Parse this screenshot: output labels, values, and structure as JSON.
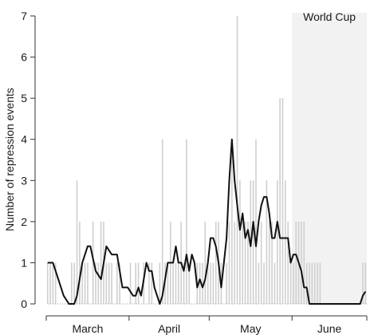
{
  "chart_data": {
    "type": "bar+line",
    "title": "",
    "ylabel": "Number of repression events",
    "xlabel": "",
    "ylim": [
      0,
      7
    ],
    "yticks": [
      0,
      1,
      2,
      3,
      4,
      5,
      6,
      7
    ],
    "x_unit": "days",
    "x_range": [
      0,
      120
    ],
    "months": [
      {
        "label": "March",
        "start": 0,
        "end": 31
      },
      {
        "label": "April",
        "start": 31,
        "end": 61
      },
      {
        "label": "May",
        "start": 61,
        "end": 92
      },
      {
        "label": "June",
        "start": 92,
        "end": 120
      }
    ],
    "shaded_band": {
      "label": "World Cup",
      "start": 92,
      "end": 120,
      "color": "#f2f2f2"
    },
    "series": [
      {
        "kind": "bars",
        "color": "#cfcfcf",
        "x": [
          0,
          1,
          2,
          3,
          4,
          5,
          6,
          7,
          8,
          9,
          10,
          11,
          12,
          13,
          14,
          15,
          16,
          17,
          18,
          19,
          20,
          21,
          22,
          23,
          24,
          25,
          26,
          27,
          28,
          29,
          30,
          31,
          32,
          33,
          34,
          35,
          36,
          37,
          38,
          39,
          40,
          41,
          42,
          43,
          44,
          45,
          46,
          47,
          48,
          49,
          50,
          51,
          52,
          53,
          54,
          55,
          56,
          57,
          58,
          59,
          60,
          61,
          62,
          63,
          64,
          65,
          66,
          67,
          68,
          69,
          70,
          71,
          72,
          73,
          74,
          75,
          76,
          77,
          78,
          79,
          80,
          81,
          82,
          83,
          84,
          85,
          86,
          87,
          88,
          89,
          90,
          91,
          92,
          93,
          94,
          95,
          96,
          97,
          98,
          99,
          100,
          101,
          102,
          103,
          104,
          105,
          106,
          107,
          108,
          109,
          110,
          111,
          112,
          113,
          114,
          115,
          116,
          117,
          118,
          119
        ],
        "values": [
          1,
          1,
          1,
          1,
          0,
          0,
          0,
          0,
          0,
          1,
          1,
          3,
          2,
          1,
          1,
          1,
          0,
          2,
          1,
          1,
          2,
          2,
          1,
          1,
          1,
          0,
          1,
          1,
          0,
          0,
          0,
          1,
          0,
          1,
          1,
          0,
          1,
          0,
          1,
          1,
          0,
          0,
          1,
          4,
          1,
          1,
          2,
          1,
          1,
          1,
          2,
          1,
          4,
          1,
          0,
          0,
          1,
          1,
          1,
          2,
          1,
          1,
          1,
          2,
          2,
          1,
          0,
          1,
          2,
          4,
          2,
          7,
          3,
          2,
          2,
          2,
          3,
          3,
          4,
          1,
          2,
          1,
          3,
          2,
          2,
          1,
          3,
          5,
          5,
          3,
          2,
          1,
          1,
          2,
          2,
          2,
          2,
          1,
          1,
          1,
          1,
          1,
          1,
          0,
          0,
          0,
          0,
          0,
          0,
          0,
          0,
          0,
          0,
          0,
          0,
          0,
          0,
          0,
          1,
          1
        ]
      },
      {
        "kind": "line",
        "color": "#111111",
        "x": [
          0,
          2,
          4,
          6,
          8,
          10,
          11,
          13,
          15,
          16,
          18,
          20,
          22,
          24,
          26,
          28,
          30,
          32,
          33,
          34,
          35,
          36,
          37,
          38,
          39,
          40,
          41,
          42,
          43,
          45,
          46,
          47,
          48,
          49,
          50,
          51,
          52,
          53,
          54,
          55,
          56,
          57,
          58,
          59,
          60,
          61,
          62,
          63,
          64,
          65,
          66,
          67,
          68,
          69,
          70,
          71,
          72,
          73,
          74,
          75,
          76,
          77,
          78,
          79,
          80,
          81,
          82,
          83,
          84,
          85,
          86,
          87,
          88,
          89,
          90,
          91,
          92,
          93,
          94,
          95,
          96,
          97,
          98,
          99,
          100,
          101,
          102,
          103,
          104,
          105,
          106,
          107,
          108,
          110,
          112,
          114,
          116,
          117,
          118,
          119
        ],
        "values": [
          1,
          1,
          0.6,
          0.2,
          0,
          0,
          0.2,
          1,
          1.4,
          1.4,
          0.8,
          0.6,
          1.4,
          1.2,
          1.2,
          0.4,
          0.4,
          0.2,
          0.2,
          0.4,
          0.2,
          0.6,
          1,
          0.8,
          0.8,
          0.4,
          0.2,
          0,
          0.2,
          1,
          1,
          1,
          1.4,
          1,
          1,
          0.8,
          1.2,
          0.8,
          1.2,
          1,
          0.4,
          0.6,
          0.4,
          0.6,
          1,
          1.6,
          1.6,
          1.4,
          1,
          0.4,
          1,
          1.6,
          3,
          4,
          3,
          2.4,
          1.8,
          2.2,
          1.6,
          1.8,
          1.4,
          2,
          1.4,
          2,
          2.4,
          2.6,
          2.6,
          2.2,
          1.6,
          1.6,
          2,
          1.6,
          1.6,
          1.6,
          1.6,
          1,
          1.2,
          1.2,
          1,
          0.8,
          0.4,
          0.4,
          0,
          0,
          0,
          0,
          0,
          0,
          0,
          0,
          0,
          0,
          0,
          0,
          0,
          0,
          0,
          0,
          0.2,
          0.3
        ]
      }
    ],
    "legend": "none",
    "grid": false
  }
}
